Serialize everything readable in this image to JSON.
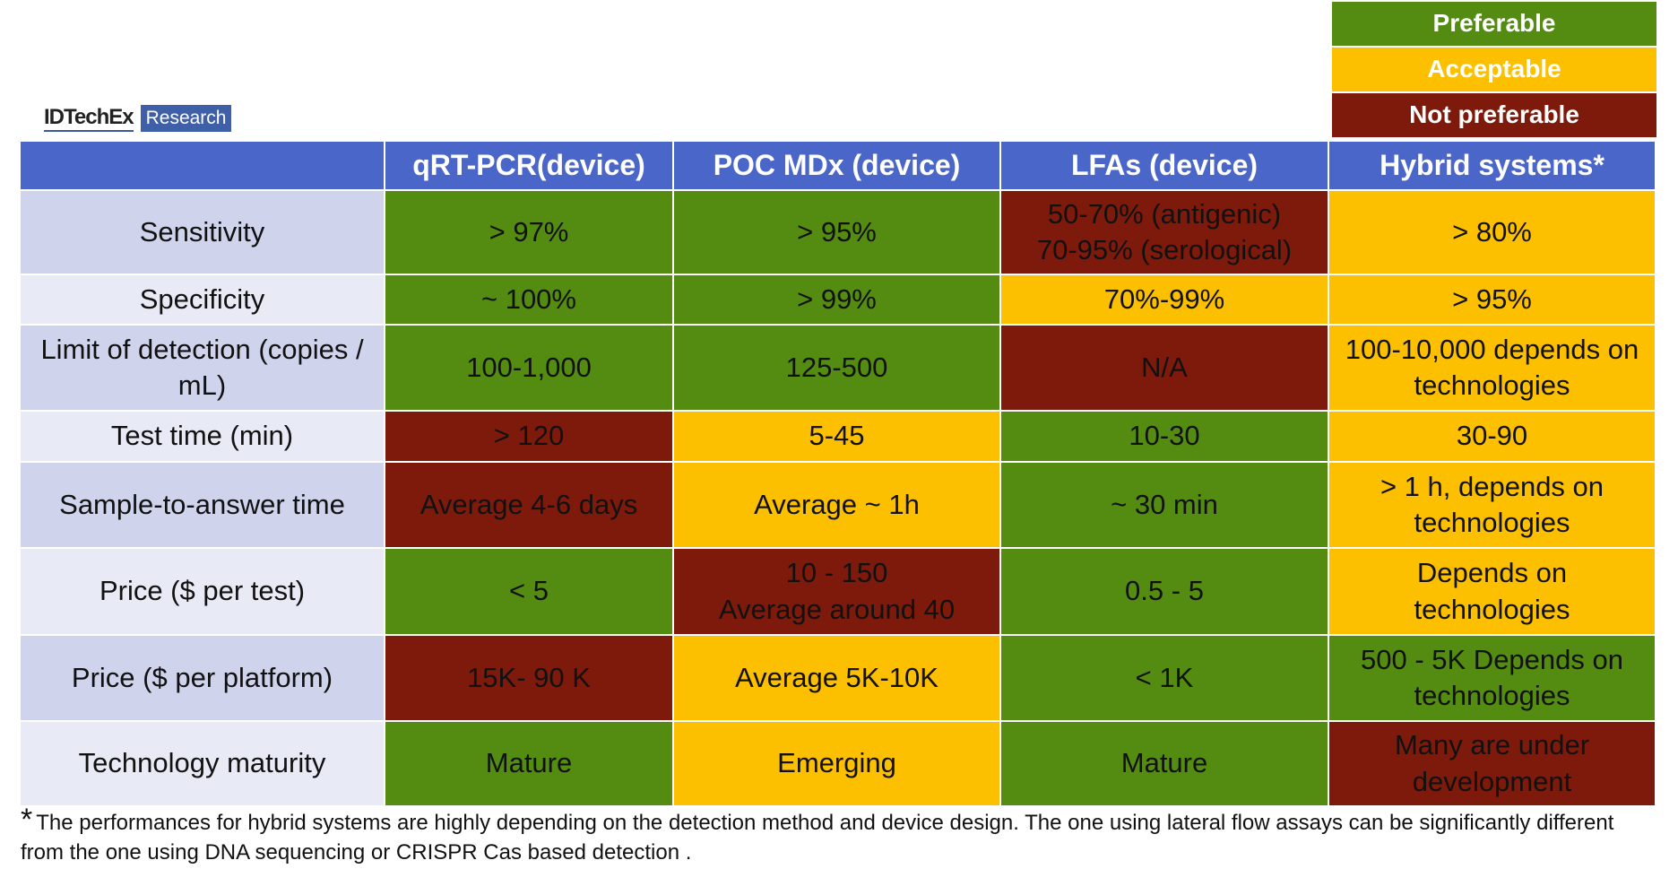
{
  "legend": [
    {
      "label": "Preferable",
      "color": "#548c12"
    },
    {
      "label": "Acceptable",
      "color": "#fcc000"
    },
    {
      "label": "Not preferable",
      "color": "#7e1a0b"
    }
  ],
  "logo": {
    "brand": "IDTechEx",
    "tag": "Research"
  },
  "table": {
    "header": [
      "",
      "qRT-PCR(device)",
      "POC MDx (device)",
      "LFAs (device)",
      "Hybrid systems*"
    ],
    "rows": [
      {
        "label": "Sensitivity",
        "cells": [
          {
            "text": "> 97%",
            "color": "#548c12"
          },
          {
            "text": "> 95%",
            "color": "#548c12"
          },
          {
            "text": "50-70% (antigenic)\n70-95% (serological)",
            "color": "#7e1a0b"
          },
          {
            "text": "> 80%",
            "color": "#fcc000"
          }
        ]
      },
      {
        "label": "Specificity",
        "cells": [
          {
            "text": "~ 100%",
            "color": "#548c12"
          },
          {
            "text": "> 99%",
            "color": "#548c12"
          },
          {
            "text": "70%-99%",
            "color": "#fcc000"
          },
          {
            "text": "> 95%",
            "color": "#fcc000"
          }
        ]
      },
      {
        "label": "Limit of detection (copies / mL)",
        "cells": [
          {
            "text": "100-1,000",
            "color": "#548c12"
          },
          {
            "text": "125-500",
            "color": "#548c12"
          },
          {
            "text": "N/A",
            "color": "#7e1a0b"
          },
          {
            "text": "100-10,000 depends on technologies",
            "color": "#fcc000"
          }
        ]
      },
      {
        "label": "Test time (min)",
        "cells": [
          {
            "text": "> 120",
            "color": "#7e1a0b"
          },
          {
            "text": "5-45",
            "color": "#fcc000"
          },
          {
            "text": "10-30",
            "color": "#548c12"
          },
          {
            "text": "30-90",
            "color": "#fcc000"
          }
        ]
      },
      {
        "label": "Sample-to-answer time",
        "cells": [
          {
            "text": "Average 4-6 days",
            "color": "#7e1a0b"
          },
          {
            "text": "Average ~ 1h",
            "color": "#fcc000"
          },
          {
            "text": "~ 30 min",
            "color": "#548c12"
          },
          {
            "text": "> 1 h, depends on technologies",
            "color": "#fcc000"
          }
        ]
      },
      {
        "label": "Price ($ per test)",
        "cells": [
          {
            "text": "< 5",
            "color": "#548c12"
          },
          {
            "text": "10 - 150\nAverage around 40",
            "color": "#7e1a0b"
          },
          {
            "text": "0.5 - 5",
            "color": "#548c12"
          },
          {
            "text": "Depends on technologies",
            "color": "#fcc000"
          }
        ]
      },
      {
        "label": "Price ($ per platform)",
        "cells": [
          {
            "text": "15K- 90 K",
            "color": "#7e1a0b"
          },
          {
            "text": "Average 5K-10K",
            "color": "#fcc000"
          },
          {
            "text": "< 1K",
            "color": "#548c12"
          },
          {
            "text": "500 - 5K Depends on technologies",
            "color": "#548c12"
          }
        ]
      },
      {
        "label": "Technology maturity",
        "cells": [
          {
            "text": "Mature",
            "color": "#548c12"
          },
          {
            "text": "Emerging",
            "color": "#fcc000"
          },
          {
            "text": "Mature",
            "color": "#548c12"
          },
          {
            "text": "Many are under development",
            "color": "#7e1a0b"
          }
        ]
      }
    ]
  },
  "footnote": {
    "mark": "*",
    "text": "The performances for hybrid systems are highly depending on the detection method and device design. The one using lateral flow assays can be significantly different from the one using DNA sequencing or CRISPR Cas based detection ."
  }
}
